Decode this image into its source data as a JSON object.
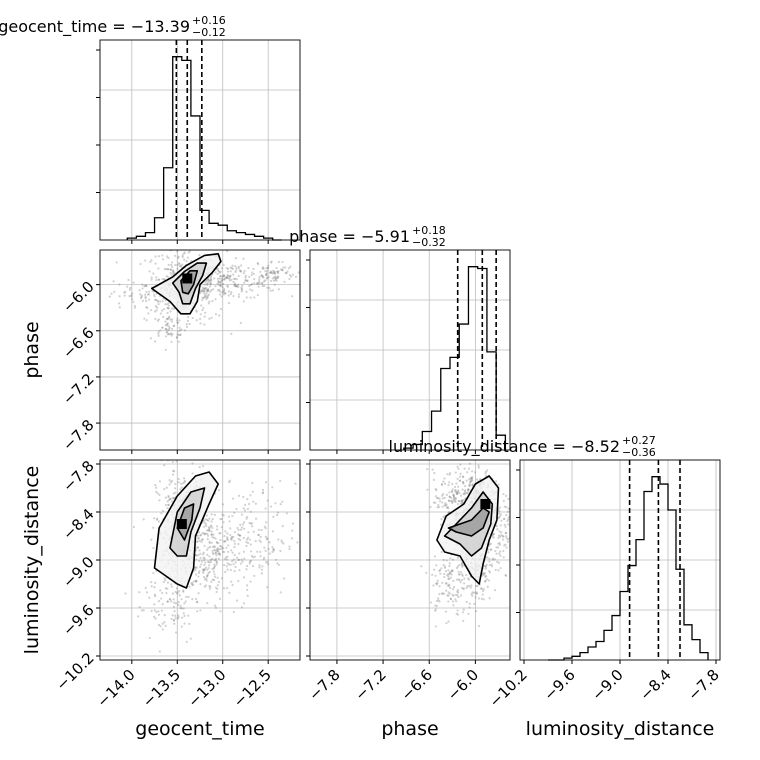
{
  "chart_data": {
    "type": "corner",
    "parameters": [
      "geocent_time",
      "phase",
      "luminosity_distance"
    ],
    "titles": [
      {
        "param": "geocent_time",
        "text": "geocent_time = −13.39",
        "sup": "+0.16",
        "sub": "−0.12"
      },
      {
        "param": "phase",
        "text": "phase = −5.91",
        "sup": "+0.18",
        "sub": "−0.32"
      },
      {
        "param": "luminosity_distance",
        "text": "luminosity_distance = −8.52",
        "sup": "+0.27",
        "sub": "−0.36"
      }
    ],
    "ranges": {
      "geocent_time": [
        -14.35,
        -12.15
      ],
      "phase": [
        -8.15,
        -5.55
      ],
      "luminosity_distance": [
        -10.25,
        -7.75
      ]
    },
    "ticks": {
      "geocent_time": [
        "−14.0",
        "−13.5",
        "−13.0",
        "−12.5"
      ],
      "phase": [
        "−7.8",
        "−7.2",
        "−6.6",
        "−6.0"
      ],
      "luminosity_distance": [
        "−10.2",
        "−9.6",
        "−9.0",
        "−8.4",
        "−7.8"
      ]
    },
    "tick_values": {
      "geocent_time": [
        -14.0,
        -13.5,
        -13.0,
        -12.5
      ],
      "phase": [
        -7.8,
        -7.2,
        -6.6,
        -6.0
      ],
      "luminosity_distance": [
        -10.2,
        -9.6,
        -9.0,
        -8.4,
        -7.8
      ]
    },
    "quantiles": {
      "geocent_time": [
        -13.51,
        -13.39,
        -13.23
      ],
      "phase": [
        -6.23,
        -5.91,
        -5.73
      ],
      "luminosity_distance": [
        -8.88,
        -8.52,
        -8.25
      ]
    },
    "histograms": {
      "geocent_time": {
        "edges": [
          -14.05,
          -13.95,
          -13.85,
          -13.75,
          -13.65,
          -13.55,
          -13.45,
          -13.35,
          -13.25,
          -13.15,
          -13.05,
          -12.95,
          -12.85,
          -12.75,
          -12.65,
          -12.55,
          -12.45,
          -12.35
        ],
        "counts": [
          0.01,
          0.02,
          0.04,
          0.12,
          0.39,
          0.99,
          0.97,
          0.67,
          0.16,
          0.09,
          0.08,
          0.05,
          0.04,
          0.03,
          0.02,
          0.01,
          0.0
        ]
      },
      "phase": {
        "edges": [
          -6.93,
          -6.81,
          -6.69,
          -6.57,
          -6.45,
          -6.33,
          -6.21,
          -6.09,
          -5.97,
          -5.85,
          -5.73,
          -5.61
        ],
        "counts": [
          0.01,
          0.03,
          0.1,
          0.21,
          0.44,
          0.5,
          0.68,
          0.99,
          0.98,
          0.53,
          0.08
        ]
      },
      "luminosity_distance": {
        "edges": [
          -9.9,
          -9.8,
          -9.7,
          -9.6,
          -9.5,
          -9.4,
          -9.3,
          -9.2,
          -9.1,
          -9.0,
          -8.9,
          -8.8,
          -8.7,
          -8.6,
          -8.5,
          -8.4,
          -8.3,
          -8.2,
          -8.1,
          -8.0,
          -7.9
        ],
        "counts": [
          0.0,
          0.0,
          0.01,
          0.02,
          0.04,
          0.07,
          0.1,
          0.16,
          0.24,
          0.37,
          0.51,
          0.65,
          0.91,
          0.99,
          0.95,
          0.81,
          0.49,
          0.19,
          0.11,
          0.04
        ]
      }
    },
    "hist_ymax": 1.08,
    "sample_clouds": {
      "phase_vs_geocent_time": [
        {
          "x": -13.4,
          "y": -6.0,
          "sx": 0.22,
          "sy": 0.25,
          "n": 420
        },
        {
          "x": -12.95,
          "y": -5.95,
          "sx": 0.3,
          "sy": 0.12,
          "n": 220
        },
        {
          "x": -12.45,
          "y": -5.85,
          "sx": 0.12,
          "sy": 0.08,
          "n": 70
        },
        {
          "x": -13.6,
          "y": -6.55,
          "sx": 0.1,
          "sy": 0.1,
          "n": 60
        },
        {
          "x": -13.95,
          "y": -6.15,
          "sx": 0.15,
          "sy": 0.1,
          "n": 50
        }
      ],
      "luminosity_distance_vs_geocent_time": [
        {
          "x": -13.45,
          "y": -8.65,
          "sx": 0.14,
          "sy": 0.4,
          "n": 420
        },
        {
          "x": -13.1,
          "y": -8.9,
          "sx": 0.2,
          "sy": 0.3,
          "n": 260
        },
        {
          "x": -12.7,
          "y": -8.75,
          "sx": 0.25,
          "sy": 0.35,
          "n": 160
        },
        {
          "x": -13.6,
          "y": -9.55,
          "sx": 0.18,
          "sy": 0.25,
          "n": 80
        }
      ],
      "luminosity_distance_vs_phase": [
        {
          "x": -5.95,
          "y": -8.6,
          "sx": 0.2,
          "sy": 0.35,
          "n": 520
        },
        {
          "x": -6.1,
          "y": -8.25,
          "sx": 0.22,
          "sy": 0.18,
          "n": 300
        },
        {
          "x": -6.35,
          "y": -9.3,
          "sx": 0.12,
          "sy": 0.25,
          "n": 110
        },
        {
          "x": -6.0,
          "y": -9.2,
          "sx": 0.08,
          "sy": 0.2,
          "n": 80
        }
      ]
    },
    "contours": {
      "phase_vs_geocent_time": [
        {
          "level": "outer",
          "points": [
            [
              -13.78,
              -6.05
            ],
            [
              -13.55,
              -5.9
            ],
            [
              -13.4,
              -5.75
            ],
            [
              -13.2,
              -5.62
            ],
            [
              -13.05,
              -5.6
            ],
            [
              -13.02,
              -5.7
            ],
            [
              -13.12,
              -5.85
            ],
            [
              -13.25,
              -6.0
            ],
            [
              -13.28,
              -6.22
            ],
            [
              -13.36,
              -6.38
            ],
            [
              -13.46,
              -6.38
            ],
            [
              -13.58,
              -6.22
            ]
          ]
        },
        {
          "level": "mid",
          "points": [
            [
              -13.55,
              -5.98
            ],
            [
              -13.42,
              -5.83
            ],
            [
              -13.28,
              -5.72
            ],
            [
              -13.18,
              -5.72
            ],
            [
              -13.22,
              -5.88
            ],
            [
              -13.3,
              -6.05
            ],
            [
              -13.36,
              -6.25
            ],
            [
              -13.44,
              -6.25
            ],
            [
              -13.48,
              -6.1
            ]
          ]
        },
        {
          "level": "inner",
          "points": [
            [
              -13.46,
              -5.95
            ],
            [
              -13.36,
              -5.82
            ],
            [
              -13.28,
              -5.82
            ],
            [
              -13.32,
              -6.0
            ],
            [
              -13.38,
              -6.12
            ],
            [
              -13.44,
              -6.1
            ]
          ]
        }
      ],
      "luminosity_distance_vs_geocent_time": [
        {
          "level": "outer",
          "points": [
            [
              -13.75,
              -9.1
            ],
            [
              -13.7,
              -8.6
            ],
            [
              -13.5,
              -8.2
            ],
            [
              -13.3,
              -7.95
            ],
            [
              -13.15,
              -7.9
            ],
            [
              -13.05,
              -8.05
            ],
            [
              -13.15,
              -8.3
            ],
            [
              -13.3,
              -8.7
            ],
            [
              -13.32,
              -9.1
            ],
            [
              -13.4,
              -9.35
            ],
            [
              -13.5,
              -9.3
            ]
          ]
        },
        {
          "level": "mid",
          "points": [
            [
              -13.58,
              -8.85
            ],
            [
              -13.5,
              -8.4
            ],
            [
              -13.35,
              -8.15
            ],
            [
              -13.2,
              -8.1
            ],
            [
              -13.25,
              -8.35
            ],
            [
              -13.35,
              -8.65
            ],
            [
              -13.4,
              -8.95
            ],
            [
              -13.5,
              -8.95
            ]
          ]
        },
        {
          "level": "inner",
          "points": [
            [
              -13.5,
              -8.6
            ],
            [
              -13.42,
              -8.35
            ],
            [
              -13.32,
              -8.3
            ],
            [
              -13.34,
              -8.5
            ],
            [
              -13.42,
              -8.75
            ]
          ]
        }
      ],
      "luminosity_distance_vs_phase": [
        {
          "level": "outer",
          "points": [
            [
              -6.5,
              -8.75
            ],
            [
              -6.38,
              -8.45
            ],
            [
              -6.15,
              -8.3
            ],
            [
              -6.0,
              -8.05
            ],
            [
              -5.82,
              -7.95
            ],
            [
              -5.7,
              -8.1
            ],
            [
              -5.72,
              -8.5
            ],
            [
              -5.82,
              -8.75
            ],
            [
              -5.9,
              -9.05
            ],
            [
              -5.95,
              -9.3
            ],
            [
              -6.05,
              -9.2
            ],
            [
              -6.2,
              -8.95
            ],
            [
              -6.4,
              -8.9
            ]
          ]
        },
        {
          "level": "mid",
          "points": [
            [
              -6.4,
              -8.7
            ],
            [
              -6.25,
              -8.55
            ],
            [
              -6.05,
              -8.35
            ],
            [
              -5.9,
              -8.15
            ],
            [
              -5.78,
              -8.3
            ],
            [
              -5.8,
              -8.55
            ],
            [
              -5.92,
              -8.85
            ],
            [
              -6.05,
              -8.95
            ],
            [
              -6.2,
              -8.8
            ]
          ]
        },
        {
          "level": "inner",
          "points": [
            [
              -6.35,
              -8.6
            ],
            [
              -6.2,
              -8.55
            ],
            [
              -6.05,
              -8.5
            ],
            [
              -5.9,
              -8.35
            ],
            [
              -5.82,
              -8.4
            ],
            [
              -5.9,
              -8.6
            ],
            [
              -6.05,
              -8.7
            ],
            [
              -6.25,
              -8.65
            ]
          ]
        }
      ]
    },
    "true_value_markers": [
      {
        "x_param": "geocent_time",
        "y_param": "phase",
        "x": -13.39,
        "y": -5.92
      },
      {
        "x_param": "geocent_time",
        "y_param": "luminosity_distance",
        "x": -13.45,
        "y": -8.55
      },
      {
        "x_param": "phase",
        "y_param": "luminosity_distance",
        "x": -5.87,
        "y": -8.3
      }
    ],
    "grid": true
  }
}
